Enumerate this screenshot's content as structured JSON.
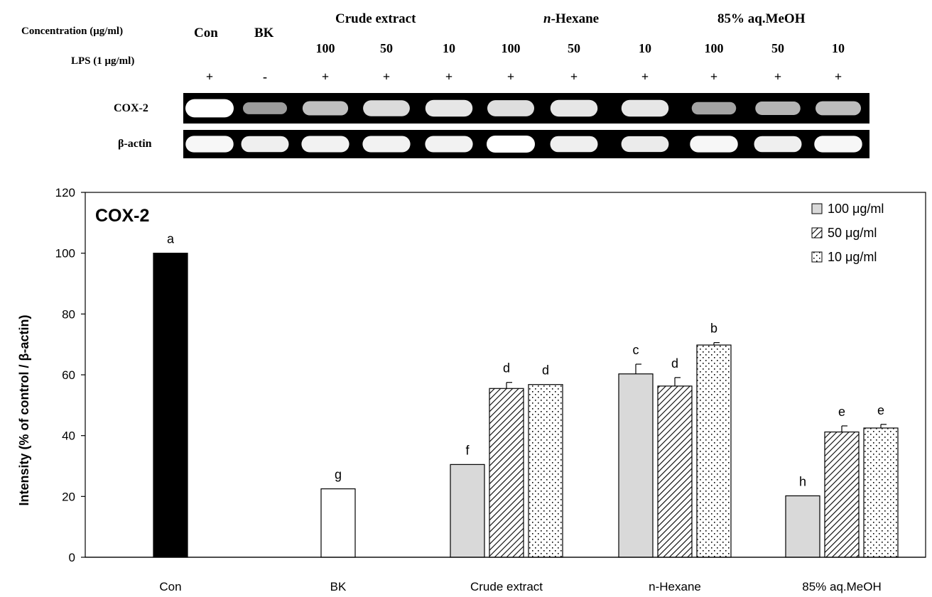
{
  "gel": {
    "row_labels": {
      "concentration": "Concentration (μg/ml)",
      "lps": "LPS (1 μg/ml)"
    },
    "groups": [
      {
        "label": "Con"
      },
      {
        "label": "BK"
      },
      {
        "label": "Crude extract"
      },
      {
        "label_prefix": "n",
        "label_rest": "-Hexane"
      },
      {
        "label": "85% aq.MeOH"
      }
    ],
    "concentrations": [
      "100",
      "50",
      "10",
      "100",
      "50",
      "10",
      "100",
      "50",
      "10"
    ],
    "lps_signs": [
      "+",
      "-",
      "+",
      "+",
      "+",
      "+",
      "+",
      "+",
      "+",
      "+",
      "+"
    ],
    "bands": [
      {
        "label": "COX-2",
        "intensity": [
          1.0,
          0.4,
          0.62,
          0.78,
          0.85,
          0.8,
          0.85,
          0.85,
          0.45,
          0.55,
          0.6
        ]
      },
      {
        "label": "β-actin",
        "intensity": [
          0.95,
          0.9,
          0.92,
          0.92,
          0.92,
          1.0,
          0.9,
          0.88,
          0.95,
          0.9,
          0.95
        ]
      }
    ]
  },
  "chart_data": {
    "type": "bar",
    "title": "COX-2",
    "ylabel": "Intensity (% of control / β-actin)",
    "xlabel": "",
    "ylim": [
      0,
      120
    ],
    "yticks": [
      0,
      20,
      40,
      60,
      80,
      100,
      120
    ],
    "categories": [
      "Con",
      "BK",
      "Crude extract",
      "n-Hexane",
      "85% aq.MeOH"
    ],
    "legend_position": "top-right",
    "grid": false,
    "single_bars": [
      {
        "category": "Con",
        "value": 100,
        "letter": "a",
        "fill": "#000000"
      },
      {
        "category": "BK",
        "value": 22.5,
        "letter": "g",
        "fill": "#ffffff"
      }
    ],
    "series": [
      {
        "name": "100 μg/ml",
        "fill": "#d9d9d9",
        "pattern": "solid",
        "values": [
          null,
          null,
          30.5,
          60.3,
          20.2
        ],
        "errors": [
          null,
          null,
          0,
          3.2,
          0
        ],
        "letters": [
          null,
          null,
          "f",
          "c",
          "h"
        ]
      },
      {
        "name": "50 μg/ml",
        "fill": "#ffffff",
        "pattern": "diagonal",
        "values": [
          null,
          null,
          55.5,
          56.3,
          41.2
        ],
        "errors": [
          null,
          null,
          2.0,
          2.8,
          2.0
        ],
        "letters": [
          null,
          null,
          "d",
          "d",
          "e"
        ]
      },
      {
        "name": "10 μg/ml",
        "fill": "#ffffff",
        "pattern": "dots",
        "values": [
          null,
          null,
          56.8,
          69.8,
          42.5
        ],
        "errors": [
          null,
          null,
          0,
          0.8,
          1.2
        ],
        "letters": [
          null,
          null,
          "d",
          "b",
          "e"
        ]
      }
    ]
  }
}
